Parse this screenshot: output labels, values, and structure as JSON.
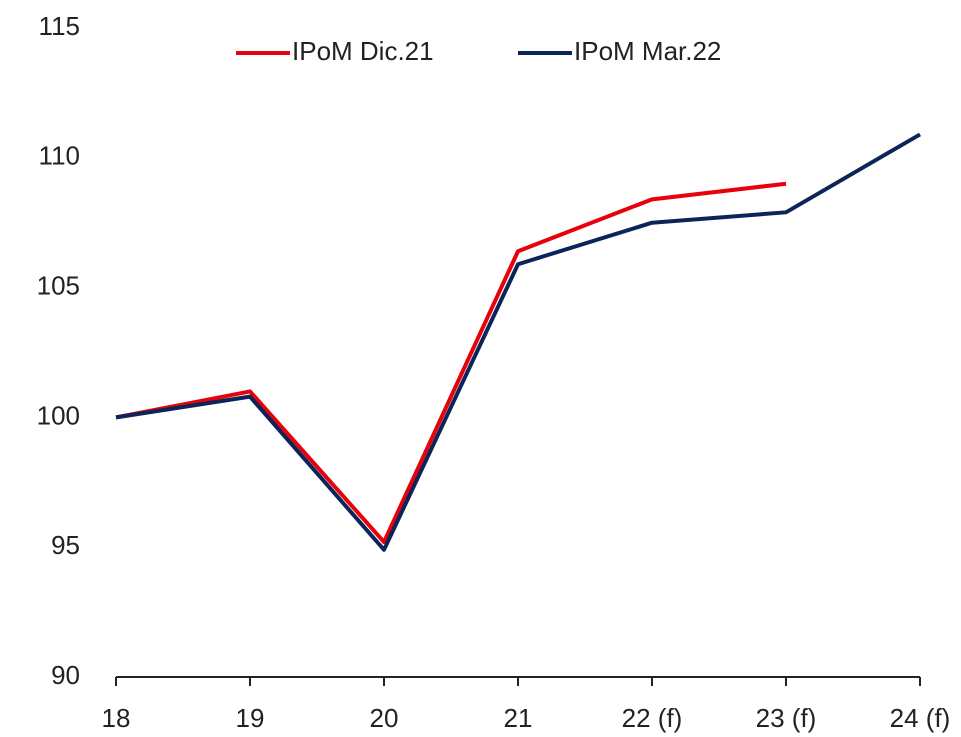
{
  "chart_data": {
    "type": "line",
    "categories": [
      "18",
      "19",
      "20",
      "21",
      "22 (f)",
      "23 (f)",
      "24 (f)"
    ],
    "series": [
      {
        "name": "IPoM Dic.21",
        "color": "#e8000b",
        "values": [
          100,
          101.0,
          95.2,
          106.4,
          108.4,
          109.0,
          null
        ]
      },
      {
        "name": "IPoM Mar.22",
        "color": "#0b2559",
        "values": [
          100,
          100.8,
          94.9,
          105.9,
          107.5,
          107.9,
          110.9
        ]
      }
    ],
    "ylim": [
      90,
      115
    ],
    "yticks": [
      90,
      95,
      100,
      105,
      110,
      115
    ],
    "legend": "top"
  }
}
